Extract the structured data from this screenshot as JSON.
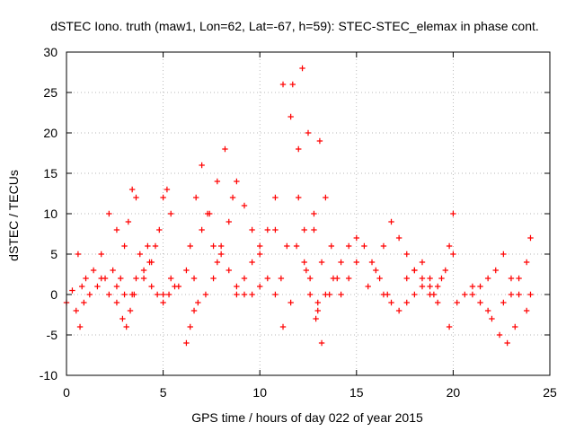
{
  "chart_data": {
    "type": "scatter",
    "title": "dSTEC Iono. truth (maw1, Lon=62, Lat=-67, h=59): STEC-STEC_elemax in phase cont.",
    "xlabel": "GPS time / hours of day 022 of year 2015",
    "ylabel": "dSTEC  / TECUs",
    "xlim": [
      0,
      25
    ],
    "ylim": [
      -10,
      30
    ],
    "xticks": [
      "0",
      "5",
      "10",
      "15",
      "20",
      "25"
    ],
    "yticks": [
      "-10",
      "-5",
      "0",
      "5",
      "10",
      "15",
      "20",
      "25",
      "30"
    ],
    "grid": true,
    "marker": "plus",
    "color": "#ff0000",
    "series": [
      {
        "x": [
          0.0,
          0.3,
          0.5,
          0.7,
          0.9
        ],
        "y": [
          -1,
          0.5,
          -2,
          -4,
          -1
        ]
      },
      {
        "x": [
          0.6,
          0.8,
          1.0,
          1.2,
          1.4,
          1.6,
          1.8
        ],
        "y": [
          5,
          1,
          2,
          0,
          3,
          1,
          2
        ]
      },
      {
        "x": [
          1.8,
          2.0,
          2.2,
          2.4,
          2.6,
          2.8,
          3.0
        ],
        "y": [
          5,
          2,
          0,
          3,
          1,
          2,
          0
        ]
      },
      {
        "x": [
          2.2,
          2.6,
          3.0,
          3.2,
          3.4,
          3.6
        ],
        "y": [
          10,
          8,
          6,
          9,
          13,
          12
        ]
      },
      {
        "x": [
          2.6,
          2.9,
          3.1,
          3.3,
          3.5
        ],
        "y": [
          -1,
          -3,
          -4,
          -2,
          0
        ]
      },
      {
        "x": [
          3.4,
          3.6,
          3.8,
          4.0,
          4.2,
          4.4
        ],
        "y": [
          0,
          2,
          5,
          3,
          6,
          4
        ]
      },
      {
        "x": [
          4.0,
          4.3,
          4.6,
          4.8,
          5.0,
          5.2,
          5.4
        ],
        "y": [
          2,
          4,
          6,
          8,
          12,
          13,
          10
        ]
      },
      {
        "x": [
          4.4,
          4.7,
          5.0,
          5.3,
          5.6
        ],
        "y": [
          1,
          0,
          -1,
          0,
          1
        ]
      },
      {
        "x": [
          5.0,
          5.4,
          5.8,
          6.2,
          6.6
        ],
        "y": [
          0,
          2,
          1,
          3,
          2
        ]
      },
      {
        "x": [
          6.2,
          6.4,
          6.6,
          6.8
        ],
        "y": [
          -6,
          -4,
          -2,
          -1
        ]
      },
      {
        "x": [
          6.4,
          6.7,
          7.0,
          7.3,
          7.6,
          7.8
        ],
        "y": [
          6,
          12,
          16,
          10,
          6,
          4
        ]
      },
      {
        "x": [
          7.0,
          7.4,
          7.8,
          8.2,
          8.6
        ],
        "y": [
          8,
          10,
          14,
          18,
          12
        ]
      },
      {
        "x": [
          7.2,
          7.6,
          8.0,
          8.4,
          8.8,
          9.2
        ],
        "y": [
          0,
          2,
          5,
          3,
          1,
          0
        ]
      },
      {
        "x": [
          8.0,
          8.4,
          8.8,
          9.2,
          9.6,
          10.0
        ],
        "y": [
          6,
          9,
          14,
          11,
          8,
          5
        ]
      },
      {
        "x": [
          8.8,
          9.2,
          9.6,
          10.0,
          10.4,
          10.8
        ],
        "y": [
          0,
          2,
          4,
          6,
          8,
          12
        ]
      },
      {
        "x": [
          9.6,
          10.0,
          10.4,
          10.8,
          11.2,
          11.6,
          12.0,
          12.3,
          12.6,
          12.9,
          13.2
        ],
        "y": [
          0,
          1,
          2,
          8,
          26,
          22,
          12,
          4,
          0,
          -3,
          -6
        ]
      },
      {
        "x": [
          10.8,
          11.1,
          11.4,
          11.7,
          12.0,
          12.3,
          12.6,
          13.0
        ],
        "y": [
          0,
          2,
          6,
          26,
          18,
          8,
          2,
          -2
        ]
      },
      {
        "x": [
          11.2,
          11.6,
          11.9,
          12.2,
          12.5,
          12.8,
          13.2,
          13.6
        ],
        "y": [
          -4,
          -1,
          6,
          28,
          20,
          10,
          4,
          0
        ]
      },
      {
        "x": [
          12.4,
          12.8,
          13.1,
          13.4,
          13.7,
          14.0
        ],
        "y": [
          3,
          8,
          19,
          12,
          6,
          2
        ]
      },
      {
        "x": [
          13.0,
          13.4,
          13.8,
          14.2,
          14.6,
          15.0
        ],
        "y": [
          -1,
          0,
          2,
          4,
          6,
          7
        ]
      },
      {
        "x": [
          14.2,
          14.6,
          15.0,
          15.4,
          15.8,
          16.2,
          16.6
        ],
        "y": [
          0,
          2,
          4,
          6,
          4,
          2,
          0
        ]
      },
      {
        "x": [
          15.6,
          16.0,
          16.4,
          16.8,
          17.2,
          17.6,
          18.0,
          18.4,
          18.8
        ],
        "y": [
          1,
          3,
          6,
          9,
          7,
          5,
          3,
          2,
          1
        ]
      },
      {
        "x": [
          16.4,
          16.8,
          17.2,
          17.6,
          18.0,
          18.4,
          18.8,
          19.2
        ],
        "y": [
          0,
          -1,
          -2,
          -1,
          0,
          1,
          0,
          -1
        ]
      },
      {
        "x": [
          17.6,
          18.0,
          18.4,
          18.8,
          19.2,
          19.6,
          20.0
        ],
        "y": [
          2,
          3,
          4,
          2,
          1,
          3,
          5
        ]
      },
      {
        "x": [
          19.0,
          19.4,
          19.8,
          20.0
        ],
        "y": [
          0,
          2,
          6,
          10
        ]
      },
      {
        "x": [
          19.8,
          20.2,
          20.6,
          21.0,
          21.4,
          21.8
        ],
        "y": [
          -4,
          -1,
          0,
          1,
          -1,
          -2
        ]
      },
      {
        "x": [
          21.0,
          21.4,
          21.8,
          22.2,
          22.6
        ],
        "y": [
          0,
          1,
          2,
          3,
          5
        ]
      },
      {
        "x": [
          22.0,
          22.4,
          22.8,
          23.2
        ],
        "y": [
          -3,
          -5,
          -6,
          -4
        ]
      },
      {
        "x": [
          22.6,
          23.0,
          23.4,
          23.8,
          24.0
        ],
        "y": [
          -1,
          0,
          2,
          4,
          7
        ]
      },
      {
        "x": [
          23.0,
          23.4,
          23.8,
          24.0
        ],
        "y": [
          2,
          0,
          -2,
          0
        ]
      }
    ]
  }
}
